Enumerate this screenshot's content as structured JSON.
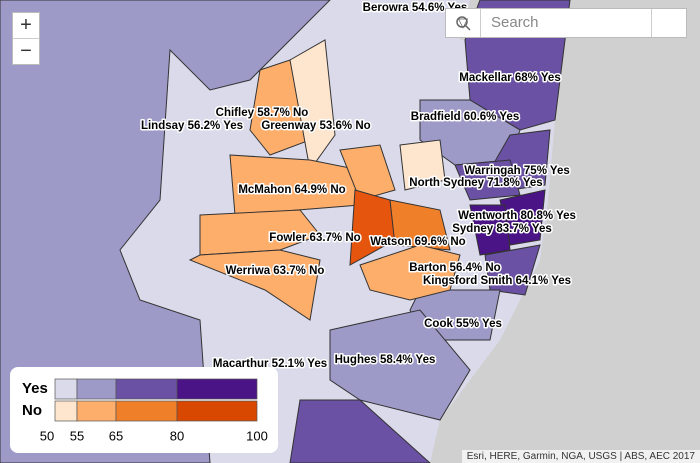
{
  "map": {
    "electorates": [
      {
        "label": "Berowra 54.6% Yes"
      },
      {
        "label": "Mackellar 68% Yes"
      },
      {
        "label": "Chifley 58.7% No"
      },
      {
        "label": "Lindsay 56.2% Yes"
      },
      {
        "label": "Greenway 53.6% No"
      },
      {
        "label": "Bradfield 60.6% Yes"
      },
      {
        "label": "Warringah 75% Yes"
      },
      {
        "label": "North Sydney 71.8% Yes"
      },
      {
        "label": "McMahon 64.9% No"
      },
      {
        "label": "Wentworth 80.8% Yes"
      },
      {
        "label": "Sydney 83.7% Yes"
      },
      {
        "label": "Fowler 63.7% No"
      },
      {
        "label": "Watson 69.6% No"
      },
      {
        "label": "Barton 56.4% No"
      },
      {
        "label": "Werriwa 63.7% No"
      },
      {
        "label": "Kingsford Smith 64.1% Yes"
      },
      {
        "label": "Cook 55% Yes"
      },
      {
        "label": "Macarthur 52.1% Yes"
      },
      {
        "label": "Hughes 58.4% Yes"
      }
    ],
    "zoom_in": "+",
    "zoom_out": "−",
    "search_placeholder": "Search",
    "legend": {
      "rows": [
        {
          "name": "Yes",
          "colors": [
            "#dadaeb",
            "#9e9ac8",
            "#6a51a3",
            "#4a1486"
          ]
        },
        {
          "name": "No",
          "colors": [
            "#fee6ce",
            "#fdae6b",
            "#f07f2a",
            "#d94801"
          ]
        }
      ],
      "ticks": [
        50,
        55,
        65,
        80,
        100
      ]
    },
    "attribution": "Esri, HERE, Garmin, NGA, USGS | ABS, AEC 2017"
  }
}
